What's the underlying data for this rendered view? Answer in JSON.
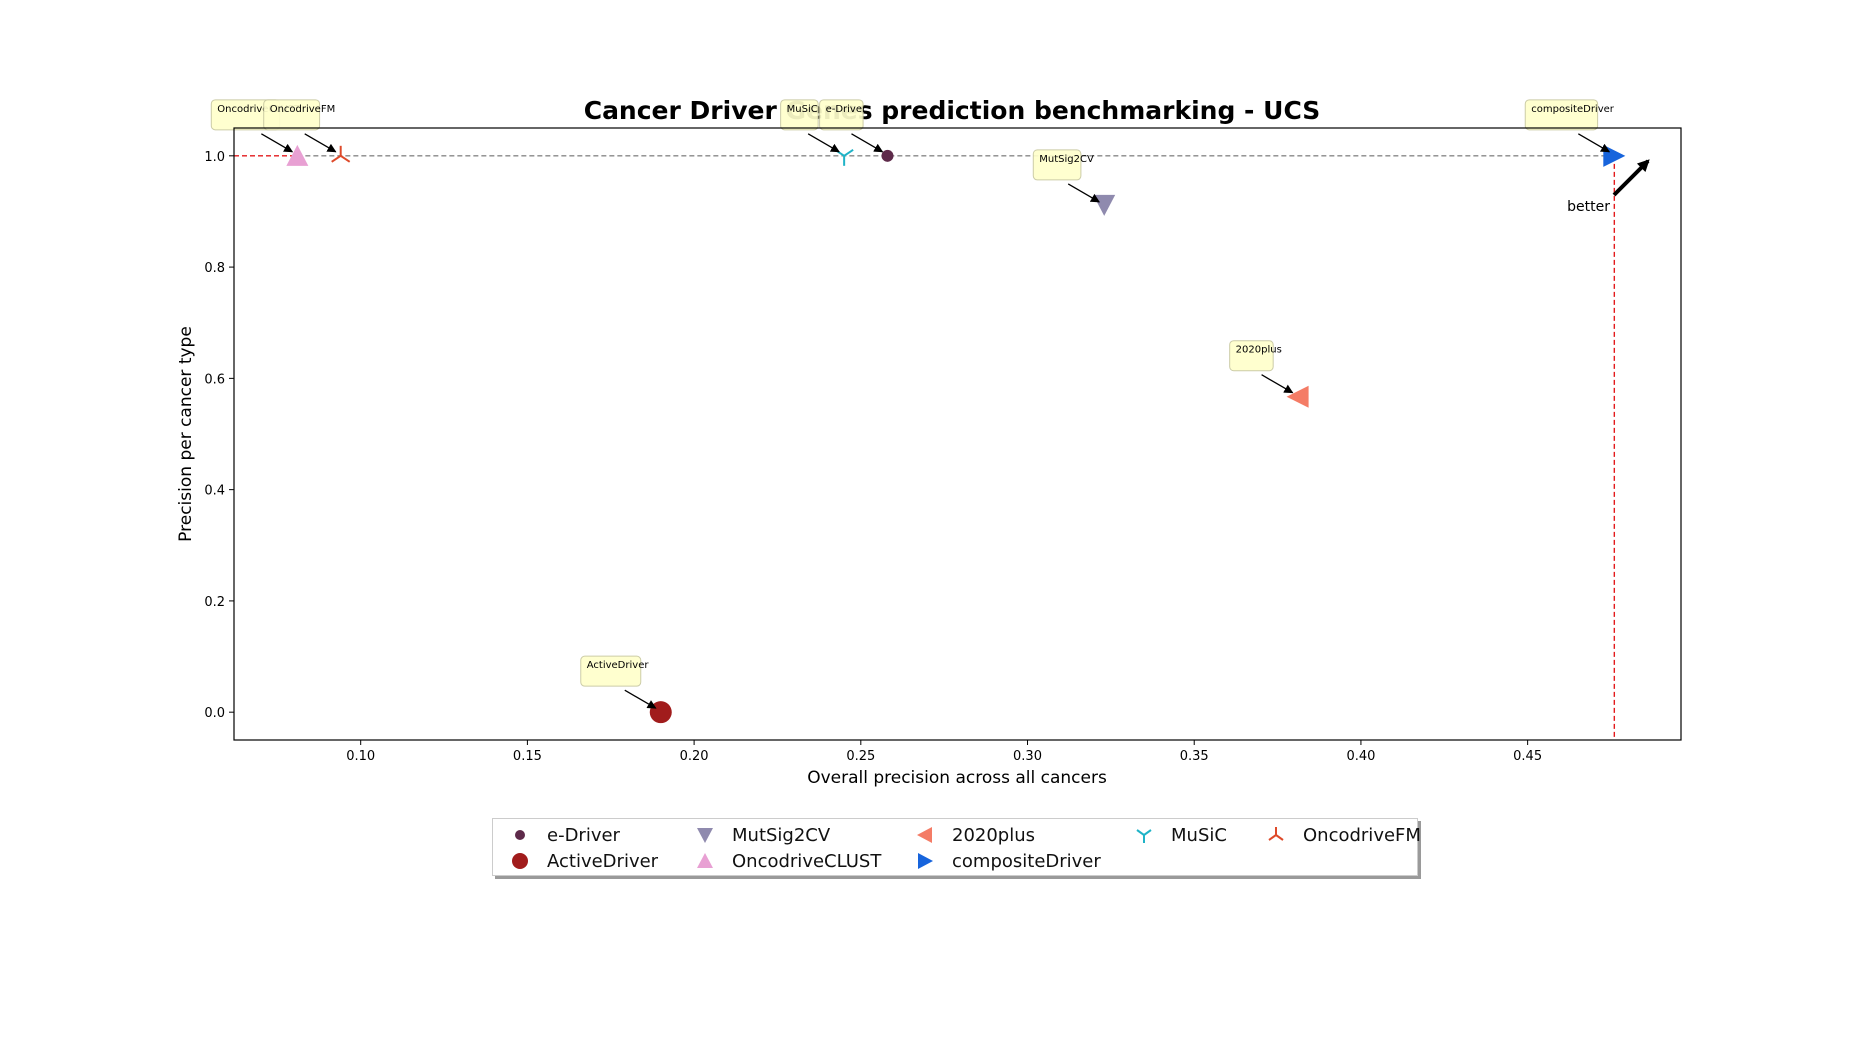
{
  "chart_data": {
    "type": "scatter",
    "title": "Cancer Driver Genes prediction benchmarking - UCS",
    "xlabel": "Overall precision across all cancers",
    "ylabel": "Precision per cancer type",
    "xlim": [
      0.062,
      0.496
    ],
    "ylim": [
      -0.05,
      1.05
    ],
    "xticks": [
      "0.10",
      "0.15",
      "0.20",
      "0.25",
      "0.30",
      "0.35",
      "0.40",
      "0.45"
    ],
    "yticks": [
      "0.0",
      "0.2",
      "0.4",
      "0.6",
      "0.8",
      "1.0"
    ],
    "grid": false,
    "legend_position": "bottom-center",
    "pareto_front": {
      "x": 0.476,
      "y": 1.0
    },
    "better_label": "better",
    "series": [
      {
        "name": "e-Driver",
        "x": 0.258,
        "y": 1.0,
        "marker": "circle-small",
        "color": "#5e2a4a"
      },
      {
        "name": "ActiveDriver",
        "x": 0.19,
        "y": 0.0,
        "marker": "circle",
        "color": "#a11c1c"
      },
      {
        "name": "MutSig2CV",
        "x": 0.323,
        "y": 0.91,
        "marker": "triangle-down",
        "color": "#8f8aae"
      },
      {
        "name": "OncodriveCLUST",
        "x": 0.081,
        "y": 1.0,
        "marker": "triangle-up",
        "color": "#e8a0d3"
      },
      {
        "name": "2020plus",
        "x": 0.381,
        "y": 0.567,
        "marker": "triangle-left",
        "color": "#f47c66"
      },
      {
        "name": "compositeDriver",
        "x": 0.476,
        "y": 1.0,
        "marker": "triangle-right",
        "color": "#1764dc"
      },
      {
        "name": "MuSiC",
        "x": 0.245,
        "y": 1.0,
        "marker": "tri-down",
        "color": "#1fb3c7"
      },
      {
        "name": "OncodriveFM",
        "x": 0.094,
        "y": 1.0,
        "marker": "tri-up",
        "color": "#de4a2a"
      }
    ]
  }
}
